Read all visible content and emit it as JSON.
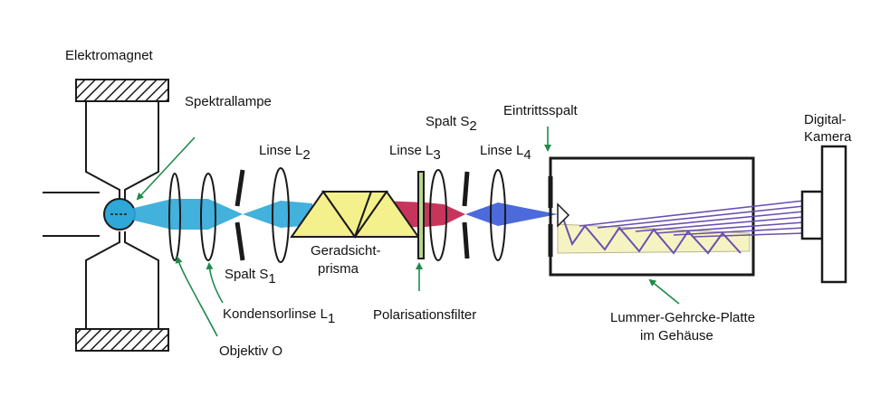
{
  "labels": {
    "elektromagnet": "Elektromagnet",
    "spektrallampe": "Spektrallampe",
    "linse_l2": "Linse L",
    "linse_l2_sub": "2",
    "linse_l3": "Linse L",
    "linse_l3_sub": "3",
    "linse_l4": "Linse L",
    "linse_l4_sub": "4",
    "spalt_s2": "Spalt S",
    "spalt_s2_sub": "2",
    "eintrittsspalt": "Eintrittsspalt",
    "digital_kamera_1": "Digital-",
    "digital_kamera_2": "Kamera",
    "geradsicht_1": "Geradsicht-",
    "geradsicht_2": "prisma",
    "spalt_s1": "Spalt S",
    "spalt_s1_sub": "1",
    "kondensorlinse": "Kondensorlinse L",
    "kondensorlinse_sub": "1",
    "polarisationsfilter": "Polarisationsfilter",
    "objektiv": "Objektiv O",
    "lummer_1": "Lummer-Gehrcke-Platte",
    "lummer_2": "im Gehäuse"
  },
  "colors": {
    "outline": "#1a1a1a",
    "beam_blue": "#2ea8d8",
    "beam_red": "#c21f4a",
    "beam_violet_blue": "#3a5ad8",
    "prism": "#f4f08c",
    "plate": "#f6f3c2",
    "ray": "#6a4fb0",
    "pointer": "#1f8a4c",
    "filter": "#b8d48a"
  }
}
